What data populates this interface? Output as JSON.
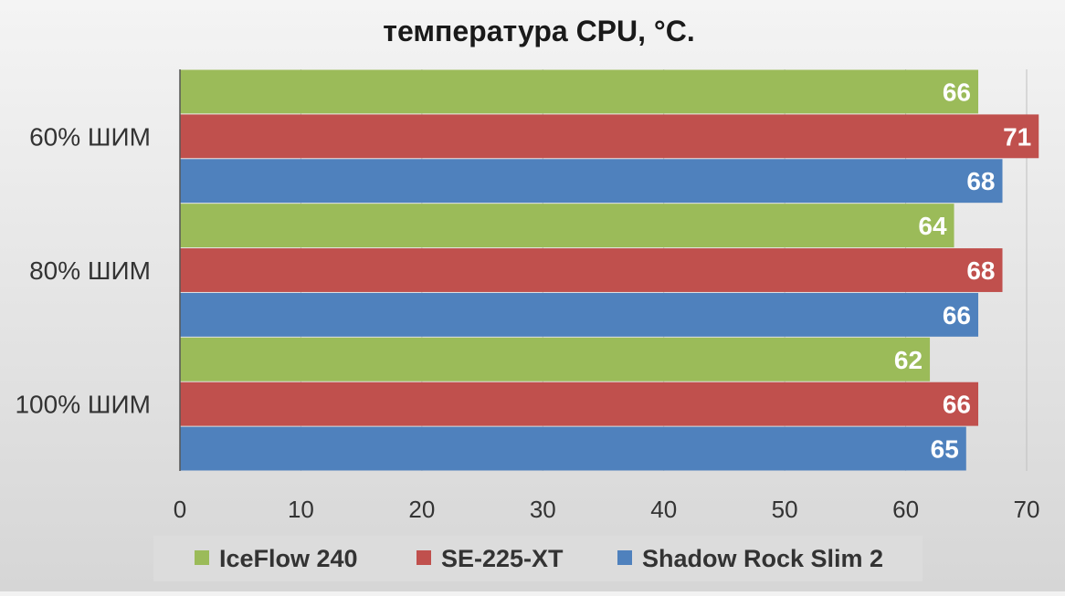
{
  "chart_data": {
    "type": "bar",
    "orientation": "horizontal",
    "title": "температура CPU, °C.",
    "xlabel": "",
    "ylabel": "",
    "categories": [
      "60% ШИМ",
      "80% ШИМ",
      "100% ШИМ"
    ],
    "series": [
      {
        "name": "IceFlow 240",
        "color": "#9bbb59",
        "values": [
          66,
          64,
          62
        ]
      },
      {
        "name": "SE-225-XT",
        "color": "#c0504d",
        "values": [
          71,
          68,
          66
        ]
      },
      {
        "name": "Shadow Rock Slim 2",
        "color": "#4f81bd",
        "values": [
          68,
          66,
          65
        ]
      }
    ],
    "xlim": [
      0,
      70
    ],
    "xticks": [
      0,
      10,
      20,
      30,
      40,
      50,
      60,
      70
    ],
    "grid": true,
    "data_labels": true,
    "legend_position": "bottom"
  }
}
